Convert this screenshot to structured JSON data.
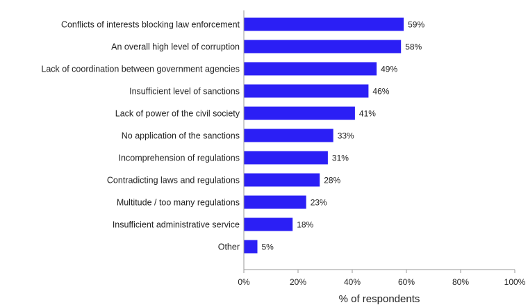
{
  "chart_data": {
    "type": "bar",
    "orientation": "horizontal",
    "categories": [
      "Conflicts of interests blocking law enforcement",
      "An overall high level of corruption",
      "Lack of coordination between government agencies",
      "Insufficient level of sanctions",
      "Lack of power of the civil society",
      "No application of the sanctions",
      "Incomprehension of regulations",
      "Contradicting laws and regulations",
      "Multitude / too many regulations",
      "Insufficient  administrative service",
      "Other"
    ],
    "values": [
      59,
      58,
      49,
      46,
      41,
      33,
      31,
      28,
      23,
      18,
      5
    ],
    "value_labels": [
      "59%",
      "58%",
      "49%",
      "46%",
      "41%",
      "33%",
      "31%",
      "28%",
      "23%",
      "18%",
      "5%"
    ],
    "xlim": [
      0,
      100
    ],
    "xticks": [
      0,
      20,
      40,
      60,
      80,
      100
    ],
    "xtick_labels": [
      "0%",
      "20%",
      "40%",
      "60%",
      "80%",
      "100%"
    ],
    "xlabel": "% of respondents",
    "ylabel": "",
    "title": "",
    "grid": false,
    "bar_color": "#2b1ff5",
    "axis_color": "#999999"
  }
}
